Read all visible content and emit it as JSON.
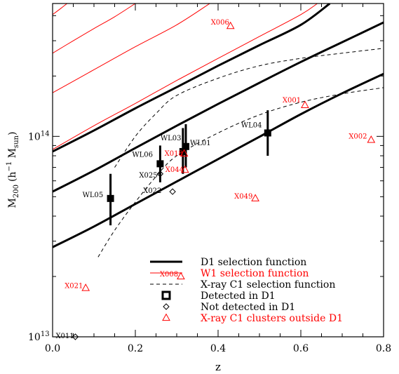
{
  "chart_data": {
    "type": "scatter",
    "xlabel": "z",
    "ylabel_main": "M",
    "ylabel_sub": "200",
    "ylabel_unit": "(h",
    "ylabel_exp": "−1",
    "ylabel_unit2": " M",
    "ylabel_unit2_sub": "sun",
    "ylabel_close": ")",
    "xlim": [
      0.0,
      0.8
    ],
    "ylim": [
      10000000000000.0,
      460000000000000.0
    ],
    "yscale": "log",
    "grid": false,
    "legend_position": "bottom-right",
    "x_ticks": [
      {
        "value": 0.0,
        "label": "0.0"
      },
      {
        "value": 0.2,
        "label": "0.2"
      },
      {
        "value": 0.4,
        "label": "0.4"
      },
      {
        "value": 0.6,
        "label": "0.6"
      },
      {
        "value": 0.8,
        "label": "0.8"
      }
    ],
    "y_ticks": [
      {
        "value": 10000000000000.0,
        "label_base": "10",
        "label_exp": "13"
      },
      {
        "value": 100000000000000.0,
        "label_base": "10",
        "label_exp": "14"
      }
    ],
    "colors": {
      "black": "#000000",
      "red": "#ff0000"
    },
    "selection_curves": [
      {
        "group": "D1",
        "color": "#000000",
        "style": "thick",
        "points": [
          [
            0,
            28000000000000.0
          ],
          [
            0.1,
            35500000000000.0
          ],
          [
            0.2,
            46000000000000.0
          ],
          [
            0.3,
            59500000000000.0
          ],
          [
            0.4,
            77000000000000.0
          ],
          [
            0.5,
            99500000000000.0
          ],
          [
            0.6,
            129000000000000.0
          ],
          [
            0.7,
            164000000000000.0
          ],
          [
            0.8,
            205000000000000.0
          ]
        ]
      },
      {
        "group": "D1",
        "color": "#000000",
        "style": "thick",
        "points": [
          [
            0,
            53000000000000.0
          ],
          [
            0.1,
            67500000000000.0
          ],
          [
            0.2,
            87500000000000.0
          ],
          [
            0.3,
            113000000000000.0
          ],
          [
            0.4,
            145000000000000.0
          ],
          [
            0.5,
            185000000000000.0
          ],
          [
            0.6,
            235000000000000.0
          ],
          [
            0.7,
            295000000000000.0
          ],
          [
            0.8,
            370000000000000.0
          ]
        ]
      },
      {
        "group": "D1",
        "color": "#000000",
        "style": "thick",
        "points": [
          [
            0,
            84000000000000.0
          ],
          [
            0.1,
            107000000000000.0
          ],
          [
            0.2,
            138000000000000.0
          ],
          [
            0.3,
            176000000000000.0
          ],
          [
            0.4,
            225000000000000.0
          ],
          [
            0.5,
            285000000000000.0
          ],
          [
            0.6,
            360000000000000.0
          ],
          [
            0.67,
            460000000000000.0
          ]
        ]
      },
      {
        "group": "W1",
        "color": "#ff0000",
        "style": "thin",
        "points": [
          [
            0,
            86000000000000.0
          ],
          [
            0.1,
            113000000000000.0
          ],
          [
            0.2,
            146000000000000.0
          ],
          [
            0.3,
            190000000000000.0
          ],
          [
            0.4,
            245000000000000.0
          ],
          [
            0.5,
            315000000000000.0
          ],
          [
            0.6,
            405000000000000.0
          ],
          [
            0.64,
            460000000000000.0
          ]
        ]
      },
      {
        "group": "W1",
        "color": "#ff0000",
        "style": "thin",
        "points": [
          [
            0,
            165000000000000.0
          ],
          [
            0.1,
            215000000000000.0
          ],
          [
            0.2,
            280000000000000.0
          ],
          [
            0.3,
            360000000000000.0
          ],
          [
            0.38,
            460000000000000.0
          ]
        ]
      },
      {
        "group": "W1",
        "color": "#ff0000",
        "style": "thin",
        "points": [
          [
            0,
            260000000000000.0
          ],
          [
            0.05,
            300000000000000.0
          ],
          [
            0.1,
            345000000000000.0
          ],
          [
            0.15,
            395000000000000.0
          ],
          [
            0.2,
            460000000000000.0
          ]
        ]
      },
      {
        "group": "W1",
        "color": "#ff0000",
        "style": "thin",
        "points": [
          [
            0,
            405000000000000.0
          ],
          [
            0.02,
            435000000000000.0
          ],
          [
            0.035,
            460000000000000.0
          ]
        ]
      },
      {
        "group": "C1",
        "color": "#000000",
        "style": "dashed",
        "points": [
          [
            0.11,
            25000000000000.0
          ],
          [
            0.15,
            34000000000000.0
          ],
          [
            0.2,
            47000000000000.0
          ],
          [
            0.25,
            63000000000000.0
          ],
          [
            0.3,
            80000000000000.0
          ],
          [
            0.4,
            104000000000000.0
          ],
          [
            0.5,
            128000000000000.0
          ],
          [
            0.6,
            148000000000000.0
          ],
          [
            0.7,
            163000000000000.0
          ],
          [
            0.8,
            175000000000000.0
          ]
        ]
      },
      {
        "group": "C1",
        "color": "#000000",
        "style": "dashed",
        "points": [
          [
            0.15,
            70000000000000.0
          ],
          [
            0.2,
            100000000000000.0
          ],
          [
            0.25,
            130000000000000.0
          ],
          [
            0.3,
            160000000000000.0
          ],
          [
            0.4,
            195000000000000.0
          ],
          [
            0.5,
            225000000000000.0
          ],
          [
            0.6,
            245000000000000.0
          ],
          [
            0.7,
            260000000000000.0
          ],
          [
            0.8,
            275000000000000.0
          ]
        ]
      }
    ],
    "detected": [
      {
        "label": "WL05",
        "z": 0.14,
        "m": 49000000000000.0,
        "err_lo": 36000000000000.0,
        "err_hi": 65000000000000.0
      },
      {
        "label": "WL06",
        "z": 0.26,
        "m": 73000000000000.0,
        "err_lo": 59000000000000.0,
        "err_hi": 90000000000000.0
      },
      {
        "label": "WL03",
        "z": 0.315,
        "m": 84000000000000.0,
        "err_lo": 65000000000000.0,
        "err_hi": 110000000000000.0
      },
      {
        "label": "WL01",
        "z": 0.322,
        "m": 89000000000000.0,
        "err_lo": 70000000000000.0,
        "err_hi": 115000000000000.0
      },
      {
        "label": "WL04",
        "z": 0.52,
        "m": 104000000000000.0,
        "err_lo": 80000000000000.0,
        "err_hi": 135000000000000.0
      }
    ],
    "not_detected": [
      {
        "label": "X025",
        "z": 0.26,
        "m": 65000000000000.0
      },
      {
        "label": "X022",
        "z": 0.29,
        "m": 53000000000000.0
      },
      {
        "label": "X011",
        "z": 0.055,
        "m": 10000000000000.0
      }
    ],
    "xray_outside": [
      {
        "label": "X006",
        "z": 0.43,
        "m": 355000000000000.0
      },
      {
        "label": "X001",
        "z": 0.61,
        "m": 143000000000000.0
      },
      {
        "label": "X002",
        "z": 0.77,
        "m": 96000000000000.0
      },
      {
        "label": "X018",
        "z": 0.318,
        "m": 82000000000000.0
      },
      {
        "label": "X044",
        "z": 0.32,
        "m": 68000000000000.0
      },
      {
        "label": "X049",
        "z": 0.49,
        "m": 49000000000000.0
      },
      {
        "label": "X008",
        "z": 0.31,
        "m": 20000000000000.0
      },
      {
        "label": "X021",
        "z": 0.08,
        "m": 17500000000000.0
      }
    ],
    "legend": [
      {
        "label": "D1 selection function",
        "color": "#000000",
        "marker": "thick-line"
      },
      {
        "label": "W1 selection function",
        "color": "#ff0000",
        "marker": "thin-line"
      },
      {
        "label": "X-ray C1 selection function",
        "color": "#000000",
        "marker": "dashed-line"
      },
      {
        "label": "Detected in D1",
        "color": "#000000",
        "marker": "square"
      },
      {
        "label": "Not detected in D1",
        "color": "#000000",
        "marker": "diamond"
      },
      {
        "label": "X-ray C1 clusters outside D1",
        "color": "#ff0000",
        "marker": "triangle"
      }
    ]
  }
}
